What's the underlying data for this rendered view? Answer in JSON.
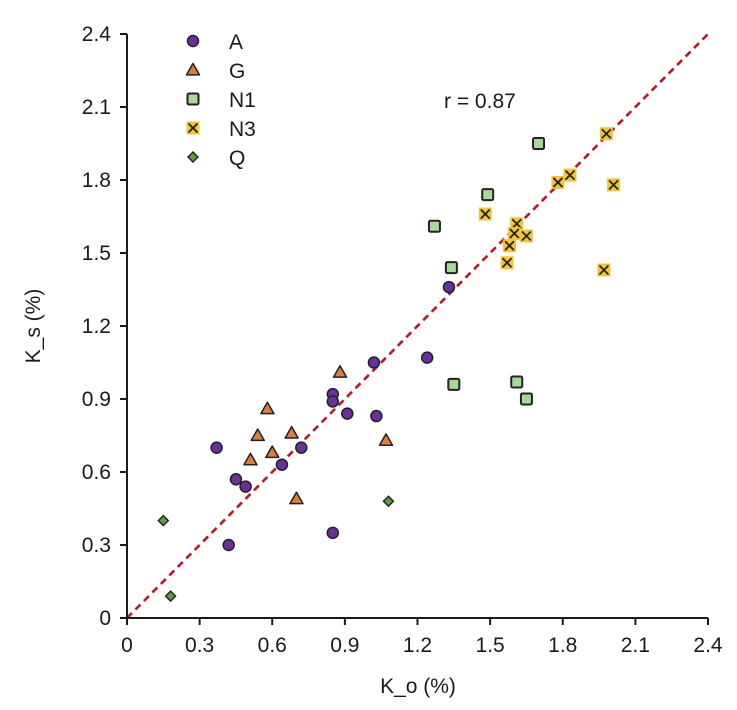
{
  "chart_data": {
    "type": "scatter",
    "title": "",
    "xlabel": "K_o (%)",
    "ylabel": "K_s (%)",
    "xlim": [
      0,
      2.4
    ],
    "ylim": [
      0,
      2.4
    ],
    "x_ticks": [
      "0",
      "0.3",
      "0.6",
      "0.9",
      "1.2",
      "1.5",
      "1.8",
      "2.1",
      "2.4"
    ],
    "y_ticks": [
      "0",
      "0.3",
      "0.6",
      "0.9",
      "1.2",
      "1.5",
      "1.8",
      "2.1",
      "2.4"
    ],
    "grid": false,
    "legend_position": "upper-left",
    "annotation": "r = 0.87",
    "reference_line": {
      "type": "1:1",
      "style": "dashed",
      "color": "#c0161c",
      "from": [
        0,
        0
      ],
      "to": [
        2.4,
        2.4
      ]
    },
    "series": [
      {
        "name": "A",
        "marker": "circle",
        "color": "#6a2fa0",
        "points": [
          [
            0.37,
            0.7
          ],
          [
            0.72,
            0.7
          ],
          [
            0.64,
            0.63
          ],
          [
            0.45,
            0.57
          ],
          [
            0.49,
            0.54
          ],
          [
            0.42,
            0.3
          ],
          [
            0.85,
            0.35
          ],
          [
            0.85,
            0.92
          ],
          [
            0.85,
            0.89
          ],
          [
            0.91,
            0.84
          ],
          [
            1.03,
            0.83
          ],
          [
            1.02,
            1.05
          ],
          [
            1.24,
            1.07
          ],
          [
            1.33,
            1.36
          ]
        ]
      },
      {
        "name": "G",
        "marker": "triangle",
        "color": "#e07b39",
        "points": [
          [
            0.58,
            0.86
          ],
          [
            0.54,
            0.75
          ],
          [
            0.68,
            0.76
          ],
          [
            0.6,
            0.68
          ],
          [
            0.51,
            0.65
          ],
          [
            0.7,
            0.49
          ],
          [
            0.88,
            1.01
          ],
          [
            1.07,
            0.73
          ]
        ]
      },
      {
        "name": "N1",
        "marker": "square",
        "color": "#a8d89a",
        "points": [
          [
            1.7,
            1.95
          ],
          [
            1.49,
            1.74
          ],
          [
            1.27,
            1.61
          ],
          [
            1.34,
            1.44
          ],
          [
            1.35,
            0.96
          ],
          [
            1.61,
            0.97
          ],
          [
            1.65,
            0.9
          ]
        ]
      },
      {
        "name": "N3",
        "marker": "x-square",
        "color": "#f5c431",
        "points": [
          [
            1.98,
            1.99
          ],
          [
            1.78,
            1.79
          ],
          [
            1.83,
            1.82
          ],
          [
            2.01,
            1.78
          ],
          [
            1.48,
            1.66
          ],
          [
            1.61,
            1.62
          ],
          [
            1.6,
            1.58
          ],
          [
            1.65,
            1.57
          ],
          [
            1.58,
            1.53
          ],
          [
            1.57,
            1.46
          ],
          [
            1.97,
            1.43
          ]
        ]
      },
      {
        "name": "Q",
        "marker": "diamond",
        "color": "#5a9e3c",
        "points": [
          [
            0.15,
            0.4
          ],
          [
            0.18,
            0.09
          ],
          [
            1.08,
            0.48
          ]
        ]
      }
    ]
  }
}
